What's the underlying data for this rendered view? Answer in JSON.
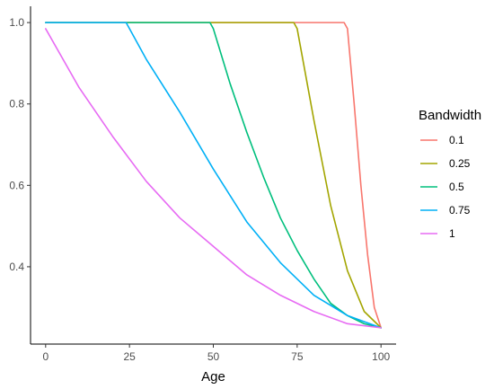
{
  "chart_data": {
    "type": "line",
    "title": "",
    "xlabel": "Age",
    "ylabel": "",
    "xlim": [
      -4.5,
      104.5
    ],
    "ylim": [
      0.21,
      1.04
    ],
    "xticks": [
      0,
      25,
      50,
      75,
      100
    ],
    "xtick_labels": [
      "0",
      "25",
      "50",
      "75",
      "100"
    ],
    "yticks": [
      0.4,
      0.6,
      0.8,
      1.0
    ],
    "ytick_labels": [
      "0.4",
      "0.6",
      "0.8",
      "1.0"
    ],
    "grid": false,
    "legend": {
      "title": "Bandwidth",
      "position": "right"
    },
    "series": [
      {
        "name": "0.1",
        "color": "#F8766D",
        "x": [
          0,
          89,
          90,
          92,
          94,
          96,
          98,
          100
        ],
        "y": [
          1.0,
          1.0,
          0.985,
          0.8,
          0.6,
          0.43,
          0.3,
          0.25
        ]
      },
      {
        "name": "0.25",
        "color": "#A3A500",
        "x": [
          0,
          74,
          75,
          80,
          85,
          90,
          95,
          100
        ],
        "y": [
          1.0,
          1.0,
          0.985,
          0.76,
          0.55,
          0.39,
          0.29,
          0.25
        ]
      },
      {
        "name": "0.5",
        "color": "#00BF7D",
        "x": [
          0,
          49,
          50,
          55,
          60,
          65,
          70,
          75,
          80,
          85,
          90,
          95,
          100
        ],
        "y": [
          1.0,
          1.0,
          0.985,
          0.85,
          0.73,
          0.62,
          0.52,
          0.44,
          0.37,
          0.31,
          0.28,
          0.26,
          0.25
        ]
      },
      {
        "name": "0.75",
        "color": "#00B0F6",
        "x": [
          0,
          24,
          25,
          30,
          40,
          50,
          60,
          70,
          80,
          90,
          100
        ],
        "y": [
          1.0,
          1.0,
          0.985,
          0.91,
          0.78,
          0.64,
          0.51,
          0.41,
          0.33,
          0.28,
          0.25
        ]
      },
      {
        "name": "1",
        "color": "#E76BF3",
        "x": [
          0,
          10,
          20,
          30,
          40,
          50,
          60,
          70,
          80,
          90,
          100
        ],
        "y": [
          0.985,
          0.84,
          0.72,
          0.61,
          0.52,
          0.45,
          0.38,
          0.33,
          0.29,
          0.26,
          0.25
        ]
      }
    ]
  }
}
